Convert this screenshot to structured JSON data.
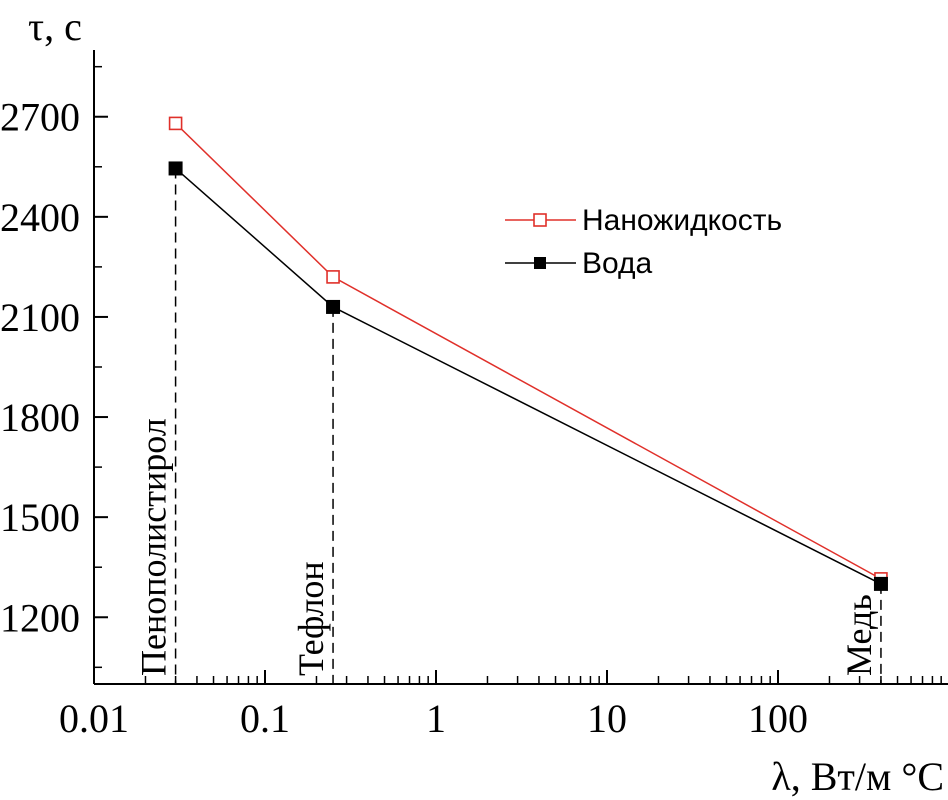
{
  "chart_data": {
    "type": "line",
    "x_scale": "log",
    "xlim": [
      0.01,
      1000
    ],
    "ylim": [
      1000,
      2900
    ],
    "x_ticks": [
      0.01,
      0.1,
      1,
      10,
      100
    ],
    "x_tick_labels": [
      "0.01",
      "0.1",
      "1",
      "10",
      "100"
    ],
    "y_ticks": [
      1200,
      1500,
      1800,
      2100,
      2400,
      2700
    ],
    "y_tick_labels": [
      "1200",
      "1500",
      "1800",
      "2100",
      "2400",
      "2700"
    ],
    "xlabel": "λ, Вт/м °С",
    "ylabel": "τ, с",
    "grid": false,
    "legend_position": "upper-right",
    "x": [
      0.03,
      0.25,
      400
    ],
    "point_labels": [
      "Пенополистирол",
      "Тефлон",
      "Медь"
    ],
    "series": [
      {
        "name": "Наножидкость",
        "values": [
          2680,
          2220,
          1315
        ],
        "color": "#e0302a",
        "marker": "open-square"
      },
      {
        "name": "Вода",
        "values": [
          2545,
          2130,
          1300
        ],
        "color": "#000000",
        "marker": "filled-square"
      }
    ]
  }
}
